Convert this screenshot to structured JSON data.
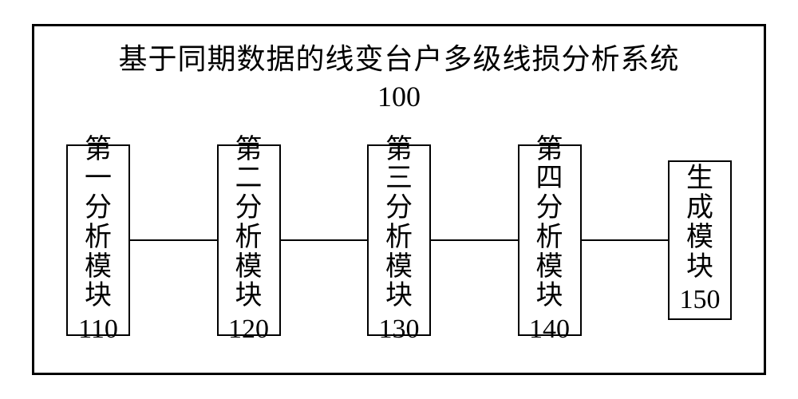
{
  "system": {
    "title": "基于同期数据的线变台户多级线损分析系统",
    "id": "100",
    "border_color": "#000000",
    "background_color": "#ffffff",
    "font_family": "SimSun"
  },
  "modules": [
    {
      "label": "第一分析模块",
      "id": "110"
    },
    {
      "label": "第二分析模块",
      "id": "120"
    },
    {
      "label": "第三分析模块",
      "id": "130"
    },
    {
      "label": "第四分析模块",
      "id": "140"
    },
    {
      "label": "生成模块",
      "id": "150"
    }
  ],
  "layout": {
    "type": "block-diagram",
    "outer_box_size": [
      920,
      440
    ],
    "module_box_size": [
      80,
      240
    ],
    "last_module_box_size": [
      80,
      200
    ],
    "title_fontsize": 36,
    "module_fontsize": 34,
    "border_width_outer": 3,
    "border_width_module": 2,
    "connector_height": 2,
    "colors": {
      "border": "#000000",
      "text": "#000000",
      "connector": "#000000",
      "background": "#ffffff"
    }
  }
}
